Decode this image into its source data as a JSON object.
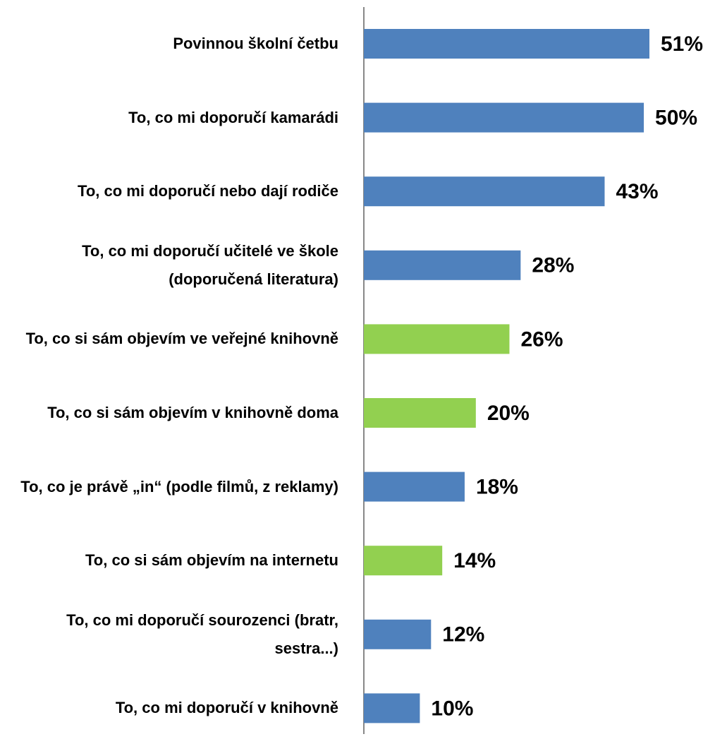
{
  "chart_data": {
    "type": "barh",
    "categories": [
      "Povinnou školní četbu",
      "To, co mi doporučí kamarádi",
      "To, co mi doporučí nebo dají rodiče",
      "To, co mi doporučí učitelé ve škole (doporučená literatura)",
      "To, co si sám objevím ve veřejné knihovně",
      "To, co si sám objevím v knihovně doma",
      "To, co je právě „in“ (podle filmů, z reklamy)",
      "To, co si sám objevím na internetu",
      "To, co mi doporučí sourozenci (bratr, sestra...)",
      "To, co mi doporučí v knihovně"
    ],
    "values": [
      51,
      50,
      43,
      28,
      26,
      20,
      18,
      14,
      12,
      10
    ],
    "value_labels": [
      "51%",
      "50%",
      "43%",
      "28%",
      "26%",
      "20%",
      "18%",
      "14%",
      "12%",
      "10%"
    ],
    "colors": [
      "#4f81bd",
      "#4f81bd",
      "#4f81bd",
      "#4f81bd",
      "#92d050",
      "#92d050",
      "#4f81bd",
      "#92d050",
      "#4f81bd",
      "#4f81bd"
    ]
  }
}
